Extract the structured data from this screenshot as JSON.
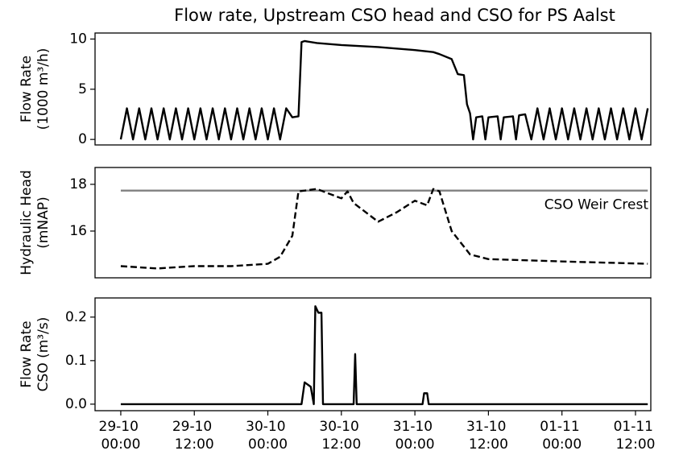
{
  "chart_data": [
    {
      "type": "line",
      "title": "Flow rate, Upstream CSO head and CSO for PS Aalst",
      "ylabel": [
        "Flow Rate",
        "(1000 m³/h)"
      ],
      "color": "#000000",
      "line_style": "solid",
      "xlim": [
        "28-10 19:48",
        "01-11 14:30"
      ],
      "ylim": [
        -0.55,
        10.6
      ],
      "yticks": [
        0,
        5,
        10
      ],
      "x": [
        "29-10 00:00",
        "29-10 01:00",
        "29-10 02:00",
        "29-10 03:00",
        "29-10 04:00",
        "29-10 05:00",
        "29-10 06:00",
        "29-10 07:00",
        "29-10 08:00",
        "29-10 09:00",
        "29-10 10:00",
        "29-10 11:00",
        "29-10 12:00",
        "29-10 13:00",
        "29-10 14:00",
        "29-10 15:00",
        "29-10 16:00",
        "29-10 17:00",
        "29-10 18:00",
        "29-10 19:00",
        "29-10 20:00",
        "29-10 21:00",
        "29-10 22:00",
        "29-10 23:00",
        "30-10 00:00",
        "30-10 01:00",
        "30-10 02:00",
        "30-10 03:00",
        "30-10 04:00",
        "30-10 05:00",
        "30-10 05:30",
        "30-10 06:00",
        "30-10 08:00",
        "30-10 12:00",
        "30-10 18:00",
        "31-10 00:00",
        "31-10 03:00",
        "31-10 04:00",
        "31-10 06:00",
        "31-10 07:00",
        "31-10 08:00",
        "31-10 08:30",
        "31-10 09:00",
        "31-10 09:30",
        "31-10 10:00",
        "31-10 11:00",
        "31-10 11:30",
        "31-10 12:00",
        "31-10 13:30",
        "31-10 14:00",
        "31-10 14:30",
        "31-10 16:00",
        "31-10 16:30",
        "31-10 17:00",
        "31-10 18:00",
        "31-10 19:00",
        "31-10 20:00",
        "31-10 21:00",
        "31-10 22:00",
        "31-10 23:00",
        "01-11 00:00",
        "01-11 01:00",
        "01-11 02:00",
        "01-11 03:00",
        "01-11 04:00",
        "01-11 05:00",
        "01-11 06:00",
        "01-11 07:00",
        "01-11 08:00",
        "01-11 09:00",
        "01-11 10:00",
        "01-11 11:00",
        "01-11 12:00",
        "01-11 13:00",
        "01-11 14:00"
      ],
      "values": [
        0,
        3.1,
        0,
        3.1,
        0,
        3.1,
        0,
        3.1,
        0,
        3.1,
        0,
        3.1,
        0,
        3.1,
        0,
        3.1,
        0,
        3.1,
        0,
        3.1,
        0,
        3.1,
        0,
        3.1,
        0,
        3.1,
        0,
        3.1,
        2.2,
        2.3,
        9.7,
        9.8,
        9.6,
        9.4,
        9.2,
        8.9,
        8.7,
        8.5,
        8.0,
        6.5,
        6.4,
        3.5,
        2.6,
        0,
        2.2,
        2.3,
        0,
        2.2,
        2.3,
        0,
        2.2,
        2.3,
        0,
        2.4,
        2.5,
        0,
        3.1,
        0,
        3.1,
        0,
        3.1,
        0,
        3.1,
        0,
        3.1,
        0,
        3.1,
        0,
        3.1,
        0,
        3.1,
        0,
        3.1,
        0,
        3.1
      ]
    },
    {
      "type": "line",
      "ylabel": [
        "Hydraulic Head",
        "(mNAP)"
      ],
      "color": "#000000",
      "line_style": "dashed",
      "xlim": [
        "28-10 19:48",
        "01-11 14:30"
      ],
      "ylim": [
        14,
        18.72
      ],
      "yticks": [
        16,
        18
      ],
      "hlines": [
        {
          "value": 17.73,
          "label": "CSO Weir Crest",
          "color": "#808080"
        }
      ],
      "x": [
        "29-10 00:00",
        "29-10 06:00",
        "29-10 12:00",
        "29-10 18:00",
        "30-10 00:00",
        "30-10 02:00",
        "30-10 04:00",
        "30-10 05:00",
        "30-10 08:00",
        "30-10 12:00",
        "30-10 13:00",
        "30-10 14:00",
        "30-10 18:00",
        "30-10 21:00",
        "31-10 00:00",
        "31-10 02:00",
        "31-10 03:00",
        "31-10 04:00",
        "31-10 06:00",
        "31-10 09:00",
        "31-10 12:00",
        "01-11 00:00",
        "01-11 14:00"
      ],
      "values": [
        14.5,
        14.4,
        14.5,
        14.5,
        14.6,
        14.9,
        15.8,
        17.7,
        17.8,
        17.4,
        17.7,
        17.2,
        16.4,
        16.8,
        17.3,
        17.1,
        17.8,
        17.7,
        16.0,
        15.0,
        14.8,
        14.7,
        14.6
      ]
    },
    {
      "type": "line",
      "ylabel": [
        "Flow Rate",
        "CSO (m³/s)"
      ],
      "color": "#000000",
      "line_style": "solid",
      "xlim": [
        "28-10 19:48",
        "01-11 14:30"
      ],
      "ylim": [
        -0.015,
        0.244
      ],
      "yticks": [
        {
          "value": 0,
          "label": "0.0"
        },
        {
          "value": 0.1,
          "label": "0.1"
        },
        {
          "value": 0.2,
          "label": "0.2"
        }
      ],
      "xticks": [
        "29-10 00:00",
        "29-10 12:00",
        "30-10 00:00",
        "30-10 12:00",
        "31-10 00:00",
        "31-10 12:00",
        "01-11 00:00",
        "01-11 12:00"
      ],
      "x": [
        "29-10 00:00",
        "30-10 05:30",
        "30-10 06:00",
        "30-10 07:00",
        "30-10 07:30",
        "30-10 07:45",
        "30-10 08:15",
        "30-10 08:45",
        "30-10 09:00",
        "30-10 14:00",
        "30-10 14:15",
        "30-10 14:30",
        "31-10 01:15",
        "31-10 01:30",
        "31-10 02:00",
        "31-10 02:15",
        "01-11 14:00"
      ],
      "values": [
        0,
        0,
        0.05,
        0.04,
        0,
        0.225,
        0.21,
        0.21,
        0,
        0,
        0.115,
        0,
        0,
        0.025,
        0.025,
        0,
        0
      ]
    }
  ]
}
